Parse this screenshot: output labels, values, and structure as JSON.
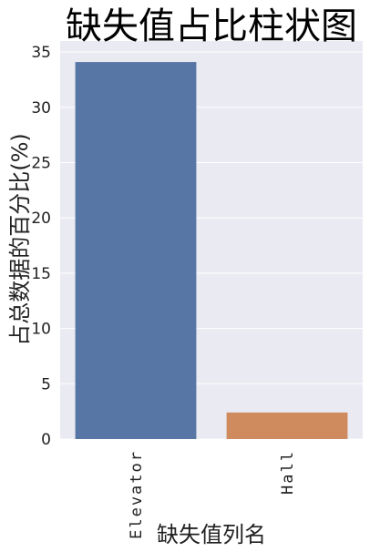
{
  "chart_data": {
    "type": "bar",
    "title": "缺失值占比柱状图",
    "xlabel": "缺失值列名",
    "ylabel": "占总数据的百分比(%)",
    "categories": [
      "Elevator",
      "Hall"
    ],
    "values": [
      34.1,
      2.4
    ],
    "colors": [
      "#5876a5",
      "#cf8a5e"
    ],
    "ylim": [
      0,
      36
    ],
    "yticks": [
      0,
      5,
      10,
      15,
      20,
      25,
      30,
      35
    ],
    "grid": true,
    "background": "#eaeaf2"
  }
}
